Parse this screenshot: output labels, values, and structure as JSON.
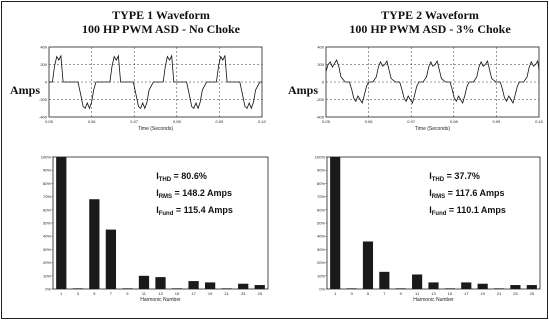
{
  "panels": [
    {
      "title1": "TYPE 1 Waveform",
      "title2": "100 HP PWM ASD - No Choke"
    },
    {
      "title1": "TYPE 2 Waveform",
      "title2": "100 HP PWM ASD - 3% Choke"
    }
  ],
  "amps_label": "Amps",
  "chart_data": [
    {
      "type": "line",
      "title": "TYPE 1 Waveform 100 HP PWM ASD - No Choke",
      "xlabel": "Time (Seconds)",
      "ylabel": "Amps",
      "x_ticks": [
        "0.05",
        "0.06",
        "0.07",
        "0.08",
        "0.09",
        "0.10"
      ],
      "y_ticks": [
        "400",
        "200",
        "0",
        "-200",
        "-400"
      ],
      "xlim": [
        0.05,
        0.1
      ],
      "ylim": [
        -400,
        400
      ],
      "grid": true,
      "series": [
        {
          "x": [
            0.05,
            0.0508,
            0.0513,
            0.0518,
            0.0523,
            0.0528,
            0.0533,
            0.0543,
            0.0558,
            0.0568,
            0.0575,
            0.058,
            0.0585,
            0.059,
            0.0595,
            0.06,
            0.0605,
            0.061,
            0.062,
            0.0633,
            0.0643,
            0.0648,
            0.0653,
            0.0658,
            0.0663,
            0.0668,
            0.0678,
            0.0688,
            0.0698,
            0.0705,
            0.071,
            0.0715,
            0.072,
            0.0725,
            0.073,
            0.0735,
            0.0745,
            0.0758,
            0.0768,
            0.0773,
            0.0778,
            0.0783,
            0.0788,
            0.0793,
            0.0803,
            0.0813,
            0.0823,
            0.083,
            0.0835,
            0.084,
            0.0845,
            0.085,
            0.0855,
            0.086,
            0.087,
            0.0883,
            0.0893,
            0.0898,
            0.0903,
            0.0908,
            0.0913,
            0.0918,
            0.0928,
            0.0938,
            0.0948,
            0.0955,
            0.096,
            0.0965,
            0.097,
            0.0975,
            0.098,
            0.0985,
            0.0995,
            0.1
          ],
          "y": [
            0,
            0,
            180,
            290,
            250,
            300,
            0,
            0,
            0,
            0,
            -160,
            -280,
            -300,
            -240,
            -300,
            -230,
            -90,
            0,
            0,
            0,
            0,
            180,
            290,
            250,
            300,
            0,
            0,
            0,
            0,
            -160,
            -280,
            -300,
            -240,
            -300,
            -230,
            -90,
            0,
            0,
            0,
            180,
            290,
            250,
            300,
            0,
            0,
            0,
            0,
            -160,
            -280,
            -300,
            -240,
            -300,
            -230,
            -90,
            0,
            0,
            0,
            180,
            290,
            250,
            300,
            0,
            0,
            0,
            0,
            -160,
            -280,
            -300,
            -240,
            -300,
            -230,
            -90,
            0,
            0
          ]
        }
      ]
    },
    {
      "type": "bar",
      "title": "",
      "xlabel": "Harmonic Number",
      "ylabel": "",
      "categories": [
        "1",
        "3",
        "5",
        "7",
        "9",
        "11",
        "13",
        "15",
        "17",
        "19",
        "21",
        "23",
        "25"
      ],
      "values": [
        100,
        0.5,
        68,
        45,
        0.5,
        10,
        9,
        0.5,
        6,
        5,
        0.5,
        4,
        3
      ],
      "y_ticks": [
        "0%",
        "10%",
        "20%",
        "30%",
        "40%",
        "50%",
        "60%",
        "70%",
        "80%",
        "90%",
        "100%"
      ],
      "ylim": [
        0,
        100
      ],
      "annotations": [
        {
          "main": "I",
          "sub": "THD",
          "text": " = 80.6%"
        },
        {
          "main": "I",
          "sub": "RMS",
          "text": " = 148.2 Amps"
        },
        {
          "main": "I",
          "sub": "Fund",
          "text": " = 115.4 Amps"
        }
      ]
    },
    {
      "type": "line",
      "title": "TYPE 2 Waveform 100 HP PWM ASD - 3% Choke",
      "xlabel": "Time (Seconds)",
      "ylabel": "Amps",
      "x_ticks": [
        "0.05",
        "0.06",
        "0.07",
        "0.08",
        "0.09",
        "0.10"
      ],
      "y_ticks": [
        "400",
        "200",
        "0",
        "-200",
        "-400"
      ],
      "xlim": [
        0.05,
        0.1
      ],
      "ylim": [
        -400,
        400
      ],
      "grid": true,
      "series": [
        {
          "x": [
            0.05,
            0.0505,
            0.051,
            0.0515,
            0.052,
            0.0525,
            0.053,
            0.0535,
            0.0545,
            0.0555,
            0.056,
            0.0565,
            0.057,
            0.0575,
            0.058,
            0.0585,
            0.059,
            0.0595,
            0.06,
            0.061,
            0.0618,
            0.0623,
            0.0628,
            0.0633,
            0.0638,
            0.0643,
            0.0648,
            0.0653,
            0.0663,
            0.0673,
            0.0678,
            0.0683,
            0.0688,
            0.0693,
            0.0698,
            0.0703,
            0.0708,
            0.0713,
            0.0718,
            0.0728,
            0.0736,
            0.0741,
            0.0746,
            0.0751,
            0.0756,
            0.0761,
            0.0766,
            0.0771,
            0.0781,
            0.0791,
            0.0796,
            0.0801,
            0.0806,
            0.0811,
            0.0816,
            0.0821,
            0.0826,
            0.0831,
            0.0836,
            0.0846,
            0.0854,
            0.0859,
            0.0864,
            0.0869,
            0.0874,
            0.0879,
            0.0884,
            0.0889,
            0.0899,
            0.0909,
            0.0914,
            0.0919,
            0.0924,
            0.0929,
            0.0934,
            0.0939,
            0.0944,
            0.0949,
            0.0954,
            0.0964,
            0.0972,
            0.0977,
            0.0982,
            0.0987,
            0.0992,
            0.0997,
            0.1
          ],
          "y": [
            120,
            200,
            230,
            170,
            210,
            250,
            180,
            60,
            0,
            0,
            -80,
            -180,
            -220,
            -160,
            -200,
            -240,
            -150,
            -50,
            0,
            0,
            60,
            170,
            230,
            180,
            200,
            240,
            140,
            40,
            0,
            0,
            -80,
            -180,
            -220,
            -160,
            -200,
            -240,
            -150,
            -50,
            0,
            0,
            60,
            170,
            230,
            180,
            200,
            240,
            140,
            40,
            0,
            0,
            -80,
            -180,
            -220,
            -160,
            -200,
            -240,
            -150,
            -50,
            0,
            0,
            60,
            170,
            230,
            180,
            200,
            240,
            140,
            40,
            0,
            0,
            -80,
            -180,
            -220,
            -160,
            -200,
            -240,
            -150,
            -50,
            0,
            0,
            60,
            170,
            230,
            180,
            200,
            240,
            140
          ]
        }
      ]
    },
    {
      "type": "bar",
      "title": "",
      "xlabel": "Harmonic Number",
      "ylabel": "",
      "categories": [
        "1",
        "3",
        "5",
        "7",
        "9",
        "11",
        "13",
        "15",
        "17",
        "19",
        "21",
        "23",
        "25"
      ],
      "values": [
        100,
        0.5,
        36,
        13,
        0.5,
        11,
        5,
        0.5,
        5,
        4,
        0.5,
        3,
        3
      ],
      "y_ticks": [
        "0%",
        "10%",
        "20%",
        "30%",
        "40%",
        "50%",
        "60%",
        "70%",
        "80%",
        "90%",
        "100%"
      ],
      "ylim": [
        0,
        100
      ],
      "annotations": [
        {
          "main": "I",
          "sub": "THD",
          "text": " = 37.7%"
        },
        {
          "main": "I",
          "sub": "RMS",
          "text": " = 117.6 Amps"
        },
        {
          "main": "I",
          "sub": "Fund",
          "text": " = 110.1 Amps"
        }
      ]
    }
  ]
}
